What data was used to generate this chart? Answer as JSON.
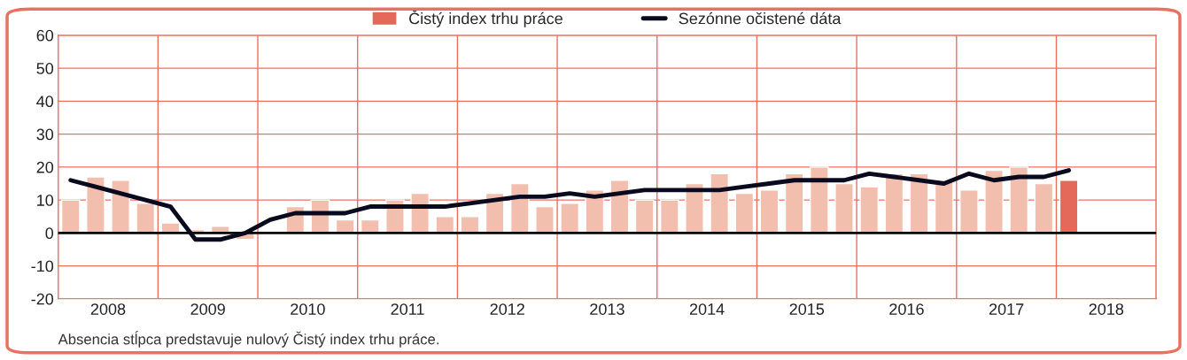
{
  "chart_data": {
    "type": "bar",
    "x": [
      2008.125,
      2008.375,
      2008.625,
      2008.875,
      2009.125,
      2009.375,
      2009.625,
      2009.875,
      2010.125,
      2010.375,
      2010.625,
      2010.875,
      2011.125,
      2011.375,
      2011.625,
      2011.875,
      2012.125,
      2012.375,
      2012.625,
      2012.875,
      2013.125,
      2013.375,
      2013.625,
      2013.875,
      2014.125,
      2014.375,
      2014.625,
      2014.875,
      2015.125,
      2015.375,
      2015.625,
      2015.875,
      2016.125,
      2016.375,
      2016.625,
      2016.875,
      2017.125,
      2017.375,
      2017.625,
      2017.875,
      2018.125
    ],
    "series": [
      {
        "name": "Čistý index trhu práce",
        "color": "#e4695a",
        "colors": [
          "#f2bfae",
          "#f2bfae",
          "#f2bfae",
          "#f2bfae",
          "#f2bfae",
          "#f2bfae",
          "#f2bfae",
          "#f2bfae",
          "#f2bfae",
          "#f2bfae",
          "#f2bfae",
          "#f2bfae",
          "#f2bfae",
          "#f2bfae",
          "#f2bfae",
          "#f2bfae",
          "#f2bfae",
          "#f2bfae",
          "#f2bfae",
          "#f2bfae",
          "#f2bfae",
          "#f2bfae",
          "#f2bfae",
          "#f2bfae",
          "#f2bfae",
          "#f2bfae",
          "#f2bfae",
          "#f2bfae",
          "#f2bfae",
          "#f2bfae",
          "#f2bfae",
          "#f2bfae",
          "#f2bfae",
          "#f2bfae",
          "#f2bfae",
          "#f2bfae",
          "#f2bfae",
          "#f2bfae",
          "#f2bfae",
          "#f2bfae",
          "#e4695a"
        ],
        "values": [
          10,
          17,
          16,
          9,
          3,
          1,
          2,
          -2,
          0,
          8,
          10,
          4,
          4,
          10,
          12,
          5,
          5,
          12,
          15,
          8,
          9,
          13,
          16,
          10,
          10,
          15,
          18,
          12,
          13,
          18,
          20,
          15,
          14,
          18,
          18,
          16,
          13,
          19,
          20,
          15,
          16
        ]
      },
      {
        "name": "Sezónne očistené dáta",
        "type": "line",
        "color": "#0a0a1e",
        "values": [
          16,
          14,
          12,
          10,
          8,
          -2,
          -2,
          0,
          4,
          6,
          6,
          6,
          8,
          8,
          8,
          8,
          9,
          10,
          11,
          11,
          12,
          11,
          12,
          13,
          13,
          13,
          13,
          14,
          15,
          16,
          16,
          16,
          18,
          17,
          16,
          15,
          18,
          16,
          17,
          17,
          19
        ]
      }
    ],
    "xlim": [
      2008,
      2019
    ],
    "xticks": [
      {
        "value": 2008,
        "label": null
      },
      {
        "value": 2009,
        "label": null
      },
      {
        "value": 2010,
        "label": null
      },
      {
        "value": 2011,
        "label": null
      },
      {
        "value": 2012,
        "label": null
      },
      {
        "value": 2013,
        "label": null
      },
      {
        "value": 2014,
        "label": null
      },
      {
        "value": 2015,
        "label": null
      },
      {
        "value": 2016,
        "label": null
      },
      {
        "value": 2017,
        "label": null
      },
      {
        "value": 2018,
        "label": null
      },
      {
        "value": 2019,
        "label": null
      },
      {
        "value": 2008.5,
        "label": "2008"
      },
      {
        "value": 2009.5,
        "label": "2009"
      },
      {
        "value": 2010.5,
        "label": "2010"
      },
      {
        "value": 2011.5,
        "label": "2011"
      },
      {
        "value": 2012.5,
        "label": "2012"
      },
      {
        "value": 2013.5,
        "label": "2013"
      },
      {
        "value": 2014.5,
        "label": "2014"
      },
      {
        "value": 2015.5,
        "label": "2015"
      },
      {
        "value": 2016.5,
        "label": "2016"
      },
      {
        "value": 2017.5,
        "label": "2017"
      },
      {
        "value": 2018.5,
        "label": "2018"
      }
    ],
    "ylim": [
      -20,
      60
    ],
    "yticks": [
      -20,
      -10,
      0,
      10,
      20,
      30,
      40,
      50,
      60
    ],
    "ref_lines": [
      {
        "axis": "y",
        "value": 0,
        "color": "#000000"
      }
    ],
    "grid": true,
    "legend": "top",
    "annotations": [
      "Absencia stĺpca predstavuje nulový Čistý index trhu práce."
    ]
  }
}
